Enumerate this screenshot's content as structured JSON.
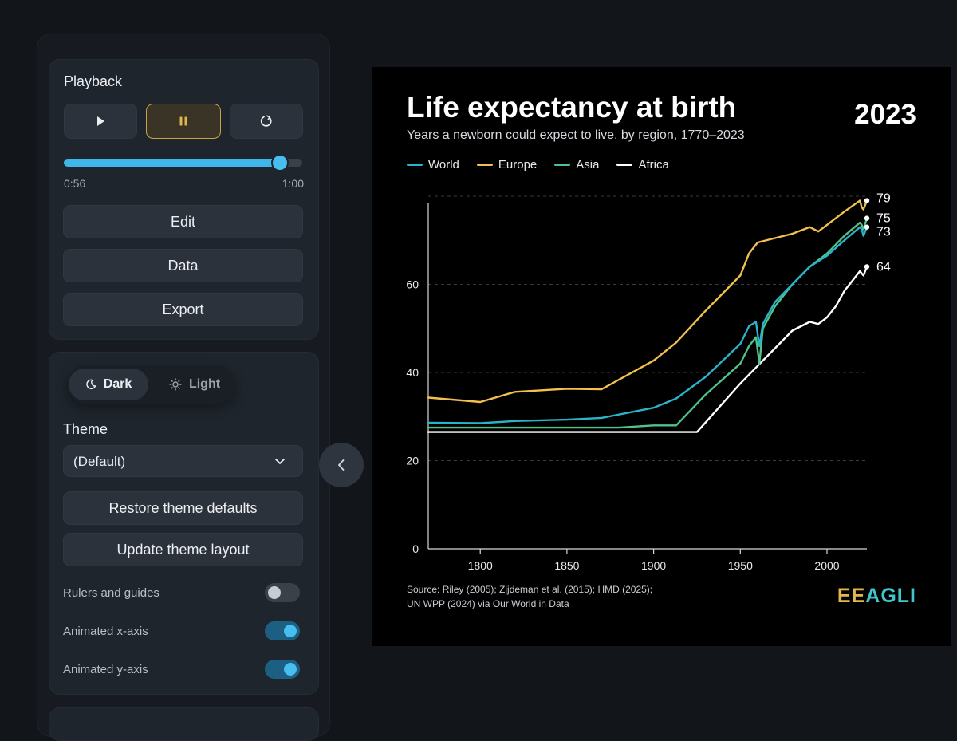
{
  "playback": {
    "title": "Playback",
    "play_icon": "play-icon",
    "pause_icon": "pause-icon",
    "restart_icon": "restart-icon",
    "progress_fraction": 0.906,
    "time_current": "0:56",
    "time_total": "1:00",
    "buttons": {
      "edit": "Edit",
      "data": "Data",
      "export": "Export"
    }
  },
  "theme_panel": {
    "mode_dark": "Dark",
    "mode_light": "Light",
    "theme_label": "Theme",
    "theme_value": "(Default)",
    "restore_label": "Restore theme defaults",
    "update_label": "Update theme layout",
    "toggles": [
      {
        "label": "Rulers and guides",
        "on": false
      },
      {
        "label": "Animated x-axis",
        "on": true
      },
      {
        "label": "Animated y-axis",
        "on": true
      }
    ]
  },
  "colors": {
    "world": "#2bb3c9",
    "europe": "#f2c04e",
    "asia": "#4fc38a",
    "africa": "#ffffff",
    "accent": "#47bdf0"
  },
  "chart_data": {
    "type": "line",
    "title": "Life expectancy at birth",
    "subtitle": "Years a newborn could expect to live, by region, 1770–2023",
    "year_label": "2023",
    "xlim": [
      1770,
      2023
    ],
    "ylim": [
      0,
      80
    ],
    "x_ticks": [
      1800,
      1850,
      1900,
      1950,
      2000
    ],
    "y_ticks": [
      0,
      20,
      40,
      60
    ],
    "grid": "horizontal dashed",
    "legend_position": "top-left",
    "series": [
      {
        "name": "World",
        "end_label": "73",
        "points": [
          [
            1770,
            28.6
          ],
          [
            1800,
            28.5
          ],
          [
            1820,
            29
          ],
          [
            1850,
            29.3
          ],
          [
            1870,
            29.7
          ],
          [
            1900,
            32
          ],
          [
            1913,
            34.1
          ],
          [
            1930,
            39
          ],
          [
            1950,
            46.5
          ],
          [
            1955,
            50.5
          ],
          [
            1959,
            51.5
          ],
          [
            1961,
            46
          ],
          [
            1963,
            51
          ],
          [
            1970,
            56
          ],
          [
            1980,
            60
          ],
          [
            1990,
            64
          ],
          [
            2000,
            66.5
          ],
          [
            2010,
            70
          ],
          [
            2019,
            73
          ],
          [
            2020,
            72.5
          ],
          [
            2021,
            71
          ],
          [
            2023,
            73
          ]
        ]
      },
      {
        "name": "Europe",
        "end_label": "79",
        "points": [
          [
            1770,
            34.3
          ],
          [
            1800,
            33.3
          ],
          [
            1820,
            35.6
          ],
          [
            1850,
            36.3
          ],
          [
            1870,
            36.2
          ],
          [
            1900,
            42.7
          ],
          [
            1913,
            46.8
          ],
          [
            1930,
            54
          ],
          [
            1950,
            62
          ],
          [
            1955,
            67
          ],
          [
            1960,
            69.5
          ],
          [
            1970,
            70.5
          ],
          [
            1980,
            71.5
          ],
          [
            1990,
            73
          ],
          [
            1995,
            72
          ],
          [
            2000,
            73.5
          ],
          [
            2010,
            76.5
          ],
          [
            2019,
            79
          ],
          [
            2020,
            77.5
          ],
          [
            2021,
            77
          ],
          [
            2023,
            79
          ]
        ]
      },
      {
        "name": "Asia",
        "end_label": "75",
        "points": [
          [
            1770,
            27.5
          ],
          [
            1880,
            27.5
          ],
          [
            1900,
            28
          ],
          [
            1913,
            28
          ],
          [
            1930,
            35
          ],
          [
            1950,
            42
          ],
          [
            1955,
            46
          ],
          [
            1959,
            48
          ],
          [
            1961,
            42
          ],
          [
            1963,
            50
          ],
          [
            1970,
            55
          ],
          [
            1980,
            60
          ],
          [
            1990,
            64
          ],
          [
            2000,
            67
          ],
          [
            2010,
            71
          ],
          [
            2019,
            74
          ],
          [
            2020,
            73.5
          ],
          [
            2021,
            72.5
          ],
          [
            2023,
            75
          ]
        ]
      },
      {
        "name": "Africa",
        "end_label": "64",
        "points": [
          [
            1770,
            26.5
          ],
          [
            1925,
            26.5
          ],
          [
            1950,
            37.5
          ],
          [
            1960,
            41.5
          ],
          [
            1970,
            45.5
          ],
          [
            1980,
            49.5
          ],
          [
            1990,
            51.5
          ],
          [
            1995,
            51
          ],
          [
            2000,
            52.5
          ],
          [
            2005,
            55
          ],
          [
            2010,
            58.5
          ],
          [
            2019,
            63
          ],
          [
            2020,
            62.5
          ],
          [
            2021,
            62
          ],
          [
            2023,
            64
          ]
        ]
      }
    ],
    "source_line1": "Source: Riley (2005); Zijdeman et al. (2015); HMD (2025);",
    "source_line2": "UN WPP (2024) via Our World in Data",
    "logo_text": "EEAGLI"
  }
}
